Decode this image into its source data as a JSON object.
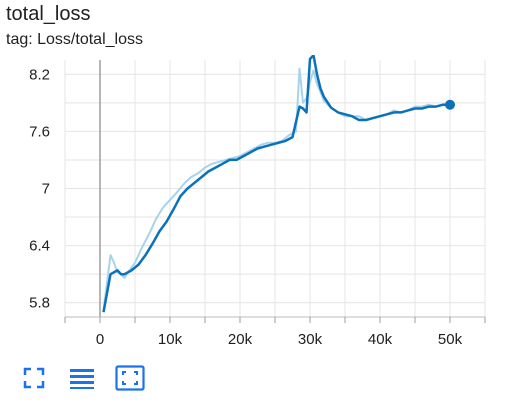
{
  "card": {
    "title": "total_loss",
    "tag": "tag: Loss/total_loss"
  },
  "toolbar": {
    "buttons": [
      {
        "icon": "fullscreen-icon"
      },
      {
        "icon": "list-lines-icon"
      },
      {
        "icon": "fit-domain-icon"
      }
    ],
    "accent_color": "#1a73e8"
  },
  "chart_data": {
    "type": "line",
    "title": "",
    "xlabel": "",
    "ylabel": "",
    "xlim": [
      -5000,
      55000
    ],
    "ylim": [
      5.65,
      8.35
    ],
    "x_ticks": [
      0,
      10000,
      20000,
      30000,
      40000,
      50000
    ],
    "x_tick_labels": [
      "0",
      "10k",
      "20k",
      "30k",
      "40k",
      "50k"
    ],
    "y_ticks": [
      5.8,
      6.4,
      7,
      7.6,
      8.2
    ],
    "y_tick_labels": [
      "5.8",
      "6.4",
      "7",
      "7.6",
      "8.2"
    ],
    "grid": true,
    "colors": {
      "smoothed": "#0b72b9",
      "raw": "#a8d3ea"
    },
    "series": [
      {
        "x": [
          500,
          1500,
          2000,
          2500,
          3000,
          3500,
          4000,
          5000,
          6000,
          7000,
          8000,
          9000,
          10000,
          11000,
          12000,
          13000,
          14000,
          15000,
          16000,
          17000,
          18000,
          19000,
          20000,
          21000,
          22000,
          23000,
          24000,
          25000,
          26000,
          27000,
          28000,
          28500,
          29000,
          29500,
          30000,
          30500,
          31000,
          32000,
          33000,
          34000,
          35000,
          36000,
          37000,
          38000,
          39000,
          40000,
          41000,
          42000,
          43000,
          44000,
          45000,
          46000,
          47000,
          48000,
          49000,
          50000
        ],
        "values": [
          5.72,
          6.3,
          6.22,
          6.12,
          6.1,
          6.06,
          6.12,
          6.22,
          6.38,
          6.52,
          6.68,
          6.8,
          6.88,
          6.96,
          7.05,
          7.12,
          7.16,
          7.22,
          7.26,
          7.28,
          7.3,
          7.32,
          7.34,
          7.38,
          7.42,
          7.46,
          7.48,
          7.48,
          7.5,
          7.56,
          7.6,
          8.26,
          7.9,
          7.95,
          8.12,
          8.24,
          8.1,
          7.92,
          7.85,
          7.8,
          7.76,
          7.76,
          7.76,
          7.72,
          7.74,
          7.76,
          7.78,
          7.82,
          7.8,
          7.82,
          7.86,
          7.86,
          7.88,
          7.86,
          7.88,
          7.88
        ]
      },
      {
        "x": [
          500,
          1500,
          2500,
          3000,
          3500,
          4500,
          5500,
          6500,
          7500,
          8500,
          9500,
          10500,
          11500,
          12500,
          13500,
          14500,
          15500,
          16500,
          17500,
          18500,
          19500,
          20500,
          21500,
          22500,
          23500,
          24500,
          25500,
          26500,
          27500,
          28500,
          29000,
          29500,
          30000,
          30500,
          31000,
          31500,
          32000,
          33000,
          34000,
          35000,
          36000,
          37000,
          38000,
          39000,
          40000,
          41000,
          42000,
          43000,
          44000,
          45000,
          46000,
          47000,
          48000,
          49000,
          50000
        ],
        "values": [
          5.7,
          6.1,
          6.14,
          6.1,
          6.1,
          6.14,
          6.2,
          6.3,
          6.42,
          6.55,
          6.65,
          6.78,
          6.92,
          7.0,
          7.06,
          7.12,
          7.18,
          7.22,
          7.26,
          7.3,
          7.3,
          7.34,
          7.38,
          7.42,
          7.44,
          7.46,
          7.48,
          7.5,
          7.54,
          7.86,
          7.84,
          7.8,
          8.36,
          8.4,
          8.2,
          8.05,
          7.96,
          7.85,
          7.8,
          7.78,
          7.76,
          7.72,
          7.72,
          7.74,
          7.76,
          7.78,
          7.8,
          7.8,
          7.82,
          7.84,
          7.84,
          7.86,
          7.86,
          7.88,
          7.88
        ]
      }
    ]
  }
}
